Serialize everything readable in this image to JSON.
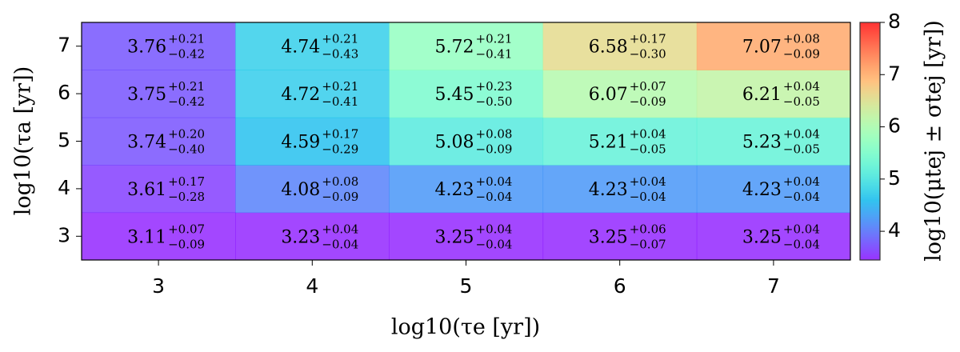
{
  "chart_data": {
    "type": "heatmap",
    "xlabel": "log10(τe [yr])",
    "ylabel": "log10(τa [yr])",
    "colorbar_label": "log10(μtej ± σtej [yr])",
    "x": [
      3,
      4,
      5,
      6,
      7
    ],
    "y": [
      3,
      4,
      5,
      6,
      7
    ],
    "xlim": [
      2.5,
      7.5
    ],
    "ylim": [
      2.5,
      7.5
    ],
    "xticks": [
      3,
      4,
      5,
      6,
      7
    ],
    "yticks": [
      3,
      4,
      5,
      6,
      7
    ],
    "colormap": "rainbow",
    "clim": [
      3.45,
      8
    ],
    "cbar_ticks": [
      4,
      5,
      6,
      7,
      8
    ],
    "values": [
      [
        3.11,
        3.23,
        3.25,
        3.25,
        3.25
      ],
      [
        3.61,
        4.08,
        4.23,
        4.23,
        4.23
      ],
      [
        3.74,
        4.59,
        5.08,
        5.21,
        5.23
      ],
      [
        3.75,
        4.72,
        5.45,
        6.07,
        6.21
      ],
      [
        3.76,
        4.74,
        5.72,
        6.58,
        7.07
      ]
    ],
    "err_plus": [
      [
        0.07,
        0.04,
        0.04,
        0.06,
        0.04
      ],
      [
        0.17,
        0.08,
        0.04,
        0.04,
        0.04
      ],
      [
        0.2,
        0.17,
        0.08,
        0.04,
        0.04
      ],
      [
        0.21,
        0.21,
        0.23,
        0.07,
        0.04
      ],
      [
        0.21,
        0.21,
        0.21,
        0.17,
        0.08
      ]
    ],
    "err_plus_labels": [
      [
        "+0.07",
        "+0.04",
        "+0.04",
        "+0.06",
        "+0.04"
      ],
      [
        "+0.17",
        "+0.08",
        "+0.04",
        "+0.04",
        "+0.04"
      ],
      [
        "+0.20",
        "+0.17",
        "+0.08",
        "+0.04",
        "+0.04"
      ],
      [
        "+0.21",
        "+0.21",
        "+0.23",
        "+0.07",
        "+0.04"
      ],
      [
        "+0.21",
        "+0.21",
        "+0.21",
        "+0.17",
        "+0.08"
      ]
    ],
    "err_minus": [
      [
        -0.09,
        -0.04,
        -0.04,
        -0.07,
        -0.04
      ],
      [
        -0.28,
        -0.09,
        -0.04,
        -0.04,
        -0.04
      ],
      [
        -0.4,
        -0.29,
        -0.09,
        -0.05,
        -0.05
      ],
      [
        -0.42,
        -0.41,
        -0.5,
        -0.09,
        -0.05
      ],
      [
        -0.42,
        -0.43,
        -0.41,
        -0.3,
        -0.09
      ]
    ],
    "err_minus_labels": [
      [
        "−0.09",
        "−0.04",
        "−0.04",
        "−0.07",
        "−0.04"
      ],
      [
        "−0.28",
        "−0.09",
        "−0.04",
        "−0.04",
        "−0.04"
      ],
      [
        "−0.40",
        "−0.29",
        "−0.09",
        "−0.05",
        "−0.05"
      ],
      [
        "−0.42",
        "−0.41",
        "−0.50",
        "−0.09",
        "−0.05"
      ],
      [
        "−0.42",
        "−0.43",
        "−0.41",
        "−0.30",
        "−0.09"
      ]
    ]
  }
}
